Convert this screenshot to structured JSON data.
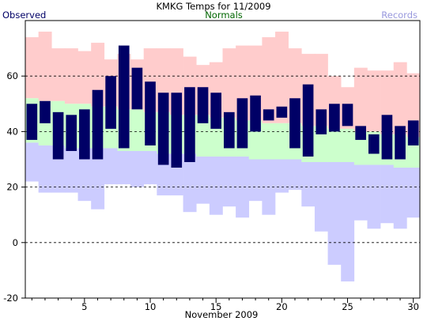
{
  "chart_data": {
    "type": "bar",
    "title": "KMKG Temps for 11/2009",
    "xlabel": "November 2009",
    "ylabel": "",
    "ylim": [
      -20,
      80
    ],
    "xlim": [
      0.5,
      30.5
    ],
    "yticks": [
      -20,
      0,
      20,
      40,
      60
    ],
    "xticks": [
      5,
      10,
      15,
      20,
      25,
      30
    ],
    "grid": "dashed horizontal lines at 0, 20, 40, 60",
    "legend": {
      "observed": "Observed",
      "normals": "Normals",
      "records": "Records",
      "placement": "top"
    },
    "colors": {
      "observed": "#000066",
      "normals": "#ccffcc",
      "record_high": "#ffcccc",
      "record_low": "#ccccff",
      "observed_legend": "#000066",
      "normals_legend": "#006600",
      "records_legend": "#9999dd"
    },
    "days": [
      1,
      2,
      3,
      4,
      5,
      6,
      7,
      8,
      9,
      10,
      11,
      12,
      13,
      14,
      15,
      16,
      17,
      18,
      19,
      20,
      21,
      22,
      23,
      24,
      25,
      26,
      27,
      28,
      29,
      30
    ],
    "record_high": [
      74,
      76,
      70,
      70,
      69,
      72,
      66,
      68,
      66,
      70,
      70,
      70,
      67,
      64,
      65,
      70,
      71,
      71,
      74,
      76,
      70,
      68,
      68,
      60,
      56,
      63,
      62,
      62,
      65,
      61
    ],
    "record_low": [
      22,
      18,
      18,
      18,
      15,
      12,
      21,
      21,
      20,
      21,
      17,
      17,
      11,
      14,
      10,
      13,
      9,
      15,
      10,
      18,
      19,
      13,
      4,
      -8,
      -14,
      8,
      5,
      7,
      5,
      9
    ],
    "normal_high": [
      52,
      51,
      51,
      50,
      50,
      49,
      49,
      48,
      48,
      47,
      47,
      46,
      46,
      46,
      45,
      45,
      44,
      44,
      43,
      43,
      43,
      42,
      42,
      41,
      41,
      40,
      40,
      39,
      39,
      38
    ],
    "normal_low": [
      36,
      35,
      35,
      34,
      34,
      34,
      34,
      33,
      33,
      33,
      32,
      32,
      32,
      31,
      31,
      31,
      31,
      30,
      30,
      30,
      30,
      29,
      29,
      29,
      29,
      28,
      28,
      28,
      27,
      27
    ],
    "observed": [
      {
        "low": 37,
        "high": 50
      },
      {
        "low": 43,
        "high": 51
      },
      {
        "low": 30,
        "high": 47
      },
      {
        "low": 33,
        "high": 46
      },
      {
        "low": 30,
        "high": 48
      },
      {
        "low": 30,
        "high": 55
      },
      {
        "low": 41,
        "high": 60
      },
      {
        "low": 34,
        "high": 71
      },
      {
        "low": 48,
        "high": 63
      },
      {
        "low": 35,
        "high": 58
      },
      {
        "low": 28,
        "high": 54
      },
      {
        "low": 27,
        "high": 54
      },
      {
        "low": 29,
        "high": 56
      },
      {
        "low": 43,
        "high": 56
      },
      {
        "low": 41,
        "high": 54
      },
      {
        "low": 34,
        "high": 47
      },
      {
        "low": 34,
        "high": 52
      },
      {
        "low": 40,
        "high": 53
      },
      {
        "low": 44,
        "high": 48
      },
      {
        "low": 45,
        "high": 49
      },
      {
        "low": 34,
        "high": 52
      },
      {
        "low": 31,
        "high": 57
      },
      {
        "low": 39,
        "high": 48
      },
      {
        "low": 40,
        "high": 50
      },
      {
        "low": 42,
        "high": 50
      },
      {
        "low": 37,
        "high": 42
      },
      {
        "low": 32,
        "high": 39
      },
      {
        "low": 30,
        "high": 46
      },
      {
        "low": 30,
        "high": 42
      },
      {
        "low": 35,
        "high": 44
      }
    ]
  }
}
